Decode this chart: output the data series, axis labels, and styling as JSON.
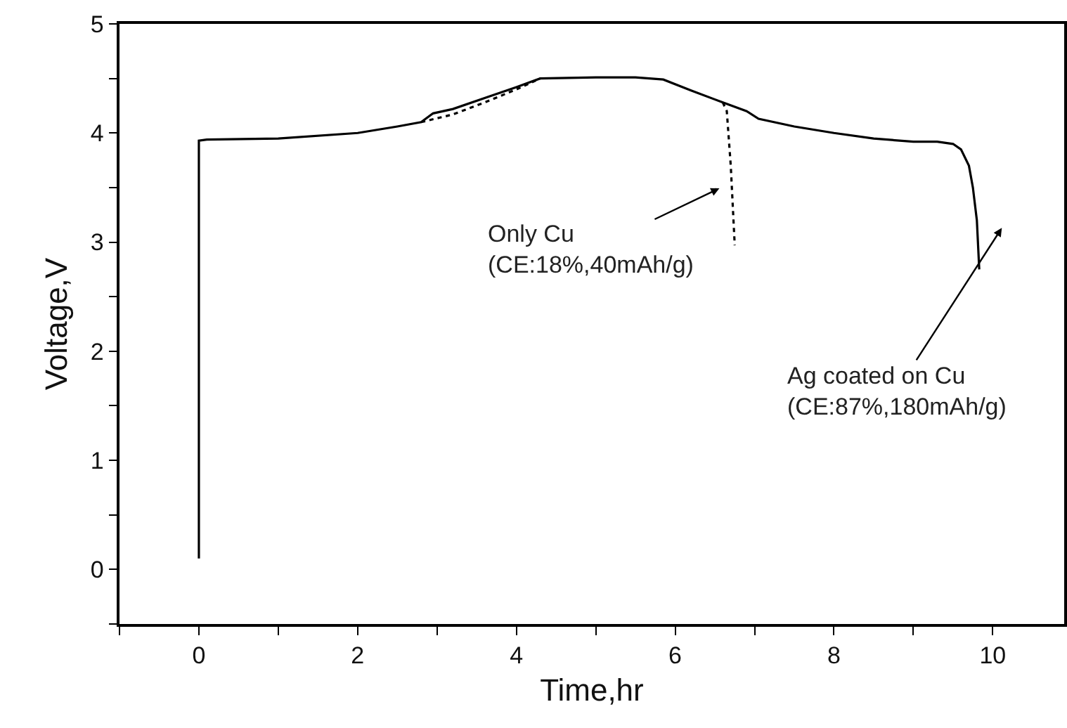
{
  "chart_data": {
    "type": "line",
    "xlabel": "Time,hr",
    "ylabel": "Voltage,V",
    "xlim": [
      -1,
      10.9
    ],
    "ylim": [
      -0.5,
      5
    ],
    "xticks": [
      {
        "value": -1,
        "label": null
      },
      0,
      {
        "value": 1,
        "label": null
      },
      2,
      {
        "value": 3,
        "label": null
      },
      4,
      {
        "value": 5,
        "label": null
      },
      6,
      {
        "value": 7,
        "label": null
      },
      8,
      {
        "value": 9,
        "label": null
      },
      10
    ],
    "yticks": [
      {
        "value": -0.5,
        "label": null
      },
      0,
      {
        "value": 0.5,
        "label": null
      },
      1,
      {
        "value": 1.5,
        "label": null
      },
      2,
      {
        "value": 2.5,
        "label": null
      },
      3,
      {
        "value": 3.5,
        "label": null
      },
      4,
      {
        "value": 4.5,
        "label": null
      },
      5
    ],
    "grid": false,
    "marker": "none",
    "series": [
      {
        "color": "#000000",
        "line_style": "solid",
        "x": [
          0,
          0,
          0.1,
          1,
          2,
          2.5,
          2.8,
          2.95,
          3.2,
          3.6,
          4,
          4.3,
          5,
          5.5,
          5.85,
          6.2,
          6.6,
          6.9,
          7.05,
          7.5,
          8,
          8.5,
          9,
          9.3,
          9.5,
          9.6,
          9.7,
          9.75,
          9.8,
          9.83
        ],
        "values": [
          0.1,
          3.93,
          3.94,
          3.95,
          4.0,
          4.06,
          4.1,
          4.18,
          4.22,
          4.32,
          4.42,
          4.5,
          4.51,
          4.51,
          4.49,
          4.39,
          4.28,
          4.2,
          4.13,
          4.06,
          4.0,
          3.95,
          3.92,
          3.92,
          3.9,
          3.85,
          3.7,
          3.5,
          3.2,
          2.75
        ]
      },
      {
        "color": "#000000",
        "line_style": "dotted",
        "x": [
          2.8,
          3.2,
          3.6,
          4.0,
          4.3,
          6.5,
          6.6,
          6.65,
          6.7,
          6.75
        ],
        "values": [
          4.1,
          4.17,
          4.28,
          4.4,
          4.5,
          null,
          4.28,
          4.2,
          3.7,
          2.97
        ]
      }
    ],
    "annotations": [
      "Only Cu\n(CE:18%,40mAh/g)",
      "Ag coated on Cu\n(CE:87%,180mAh/g)"
    ]
  }
}
